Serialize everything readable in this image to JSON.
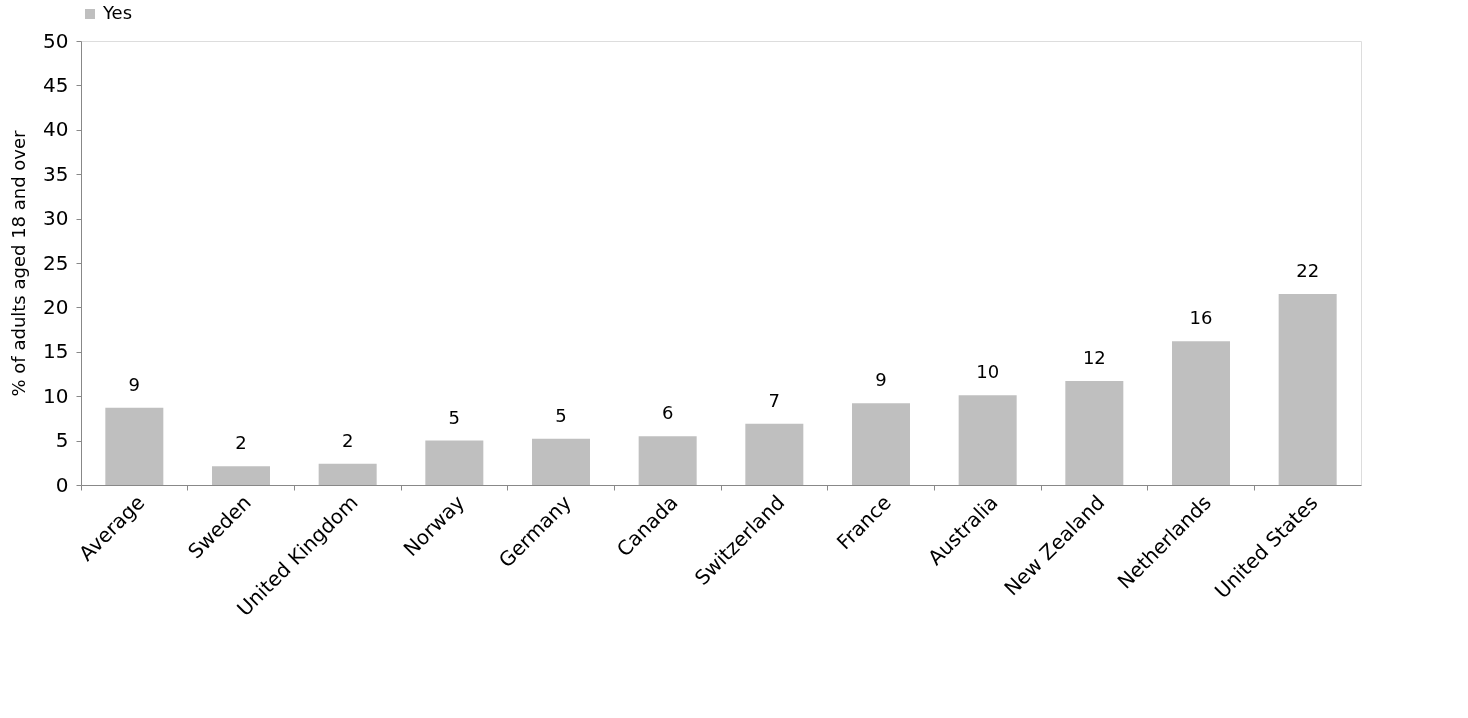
{
  "chart_data": {
    "type": "bar",
    "ylabel": "% of adults aged  18 and over",
    "categories": [
      "Average",
      "Sweden",
      "United Kingdom",
      "Norway",
      "Germany",
      "Canada",
      "Switzerland",
      "France",
      "Australia",
      "New Zealand",
      "Netherlands",
      "United States"
    ],
    "series": [
      {
        "name": "Yes",
        "color": "#bfbfbf",
        "values": [
          8.7,
          2.1,
          2.4,
          5.0,
          5.2,
          5.5,
          6.9,
          9.2,
          10.1,
          11.7,
          16.2,
          21.5
        ],
        "value_labels": [
          "9",
          "2",
          "2",
          "5",
          "5",
          "6",
          "7",
          "9",
          "10",
          "12",
          "16",
          "22"
        ]
      }
    ],
    "ylim": [
      0,
      50
    ],
    "yticks": [
      0,
      5,
      10,
      15,
      20,
      25,
      30,
      35,
      40,
      45,
      50
    ],
    "grid": false,
    "legend": "top"
  }
}
